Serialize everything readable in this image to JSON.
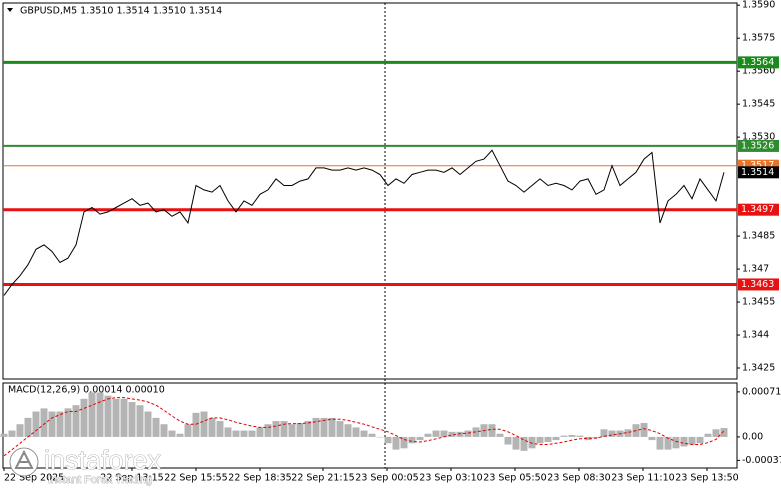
{
  "chart_data": [
    {
      "type": "line",
      "title": "GBPUSD,M5  1.3510 1.3514 1.3510 1.3514",
      "color": "#000000",
      "values": [
        1.3458,
        1.3463,
        1.3467,
        1.3472,
        1.3479,
        1.3481,
        1.3478,
        1.3473,
        1.3475,
        1.3481,
        1.3496,
        1.3498,
        1.3495,
        1.3496,
        1.3498,
        1.35,
        1.3502,
        1.3499,
        1.35,
        1.3496,
        1.3497,
        1.3494,
        1.3496,
        1.3491,
        1.3508,
        1.3506,
        1.3505,
        1.3508,
        1.3501,
        1.3496,
        1.3501,
        1.3499,
        1.3504,
        1.3506,
        1.3511,
        1.3508,
        1.3508,
        1.351,
        1.3511,
        1.3516,
        1.3516,
        1.3515,
        1.3515,
        1.3516,
        1.3515,
        1.3516,
        1.3515,
        1.3513,
        1.3508,
        1.3511,
        1.3509,
        1.3513,
        1.3514,
        1.3515,
        1.3515,
        1.3514,
        1.3516,
        1.3513,
        1.3516,
        1.3519,
        1.352,
        1.3524,
        1.3517,
        1.351,
        1.3508,
        1.3505,
        1.3508,
        1.3511,
        1.3508,
        1.3509,
        1.3508,
        1.3506,
        1.351,
        1.3511,
        1.3504,
        1.3506,
        1.3517,
        1.3508,
        1.3511,
        1.3514,
        1.352,
        1.3523,
        1.3491,
        1.3501,
        1.3504,
        1.3508,
        1.3502,
        1.3511,
        1.3506,
        1.3501,
        1.3514
      ],
      "ylim": [
        1.342,
        1.3591
      ],
      "yticks": [
        {
          "value": 1.359,
          "label": "1.3590"
        },
        1.3575,
        {
          "value": 1.356,
          "label": "1.3560"
        },
        1.3545,
        {
          "value": 1.353,
          "label": "1.3530"
        },
        1.3485,
        1.347,
        1.3455,
        1.344,
        1.3425
      ],
      "levels": [
        {
          "value": 1.3564,
          "color": "#1a8a1a"
        },
        {
          "value": 1.3526,
          "color": "#2e8b2e"
        },
        {
          "value": 1.3517,
          "color": "#e8742a"
        },
        {
          "value": 1.3514,
          "color": "#000000"
        },
        {
          "value": 1.3497,
          "color": "#e81010"
        },
        {
          "value": 1.3463,
          "color": "#e81010"
        }
      ]
    },
    {
      "type": "macd",
      "title": "MACD(12,26,9) 0.00014 0.00010",
      "color": "#b4b4b4",
      "signal_color": "#e00000",
      "values": [
        5e-05,
        0.0001,
        0.0002,
        0.0003,
        0.0004,
        0.00045,
        0.0004,
        0.0004,
        0.00045,
        0.0005,
        0.0006,
        0.0007,
        0.0007,
        0.00065,
        0.0006,
        0.0006,
        0.00055,
        0.0005,
        0.0004,
        0.0003,
        0.0002,
        0.0001,
        5e-05,
        0.0002,
        0.00038,
        0.0004,
        0.0003,
        0.00025,
        0.00015,
        0.0001,
        0.0001,
        0.0001,
        0.00015,
        0.0002,
        0.00025,
        0.00025,
        0.0002,
        0.00022,
        0.00025,
        0.0003,
        0.0003,
        0.0003,
        0.00025,
        0.0002,
        0.00015,
        0.0001,
        5e-05,
        0,
        -0.0001,
        -0.0002,
        -0.00018,
        -0.0001,
        -5e-05,
        5e-05,
        0.0001,
        0.0001,
        8e-05,
        8e-05,
        0.0001,
        0.00015,
        0.0002,
        0.0002,
        5e-05,
        -0.00012,
        -0.0002,
        -0.00022,
        -0.00018,
        -0.0001,
        -8e-05,
        -5e-05,
        2e-05,
        3e-05,
        2e-05,
        -5e-05,
        -2e-05,
        0.00012,
        0.0001,
        0.0001,
        0.00012,
        0.0002,
        0.00022,
        -5e-05,
        -0.0002,
        -0.0002,
        -0.00018,
        -0.00015,
        -0.00012,
        -0.0001,
        5e-05,
        0.00012,
        0.00014
      ],
      "signal": [
        -0.0003,
        -0.0002,
        -0.0001,
        0,
        0.0001,
        0.0002,
        0.0003,
        0.00035,
        0.0004,
        0.0004,
        0.00045,
        0.0005,
        0.00055,
        0.0006,
        0.00062,
        0.00062,
        0.0006,
        0.00058,
        0.00055,
        0.0005,
        0.00042,
        0.00033,
        0.00025,
        0.0002,
        0.0002,
        0.00025,
        0.0003,
        0.0003,
        0.00027,
        0.00023,
        0.0002,
        0.00017,
        0.00015,
        0.00015,
        0.00017,
        0.0002,
        0.00021,
        0.00021,
        0.00022,
        0.00024,
        0.00026,
        0.00028,
        0.00028,
        0.00026,
        0.00023,
        0.0002,
        0.00016,
        0.00012,
        8e-05,
        2e-05,
        -4e-05,
        -7e-05,
        -8e-05,
        -6e-05,
        -3e-05,
        0,
        3e-05,
        5e-05,
        6e-05,
        8e-05,
        0.0001,
        0.00012,
        0.00012,
        8e-05,
        2e-05,
        -5e-05,
        -0.0001,
        -0.00012,
        -0.00012,
        -0.0001,
        -8e-05,
        -5e-05,
        -3e-05,
        -2e-05,
        -2e-05,
        1e-05,
        3e-05,
        5e-05,
        7e-05,
        0.0001,
        0.00013,
        0.0001,
        5e-05,
        -2e-05,
        -7e-05,
        -0.0001,
        -0.00012,
        -0.00012,
        -9e-05,
        -4e-05,
        0.0001
      ],
      "ylim": [
        -0.00049,
        0.00085
      ],
      "yticks": [
        0.00071,
        {
          "value": 0,
          "label": "0.00"
        },
        -0.00037
      ],
      "x_labels": [
        "22 Sep 2025",
        "22 Sep 13:15",
        "22 Sep 15:55",
        "22 Sep 18:35",
        "22 Sep 21:15",
        "23 Sep 00:05",
        "23 Sep 03:10",
        "23 Sep 05:50",
        "23 Sep 08:30",
        "23 Sep 11:10",
        "23 Sep 13:50"
      ]
    }
  ],
  "watermark": {
    "brand": "instaforex",
    "tagline": "Instant Forex Trading"
  }
}
